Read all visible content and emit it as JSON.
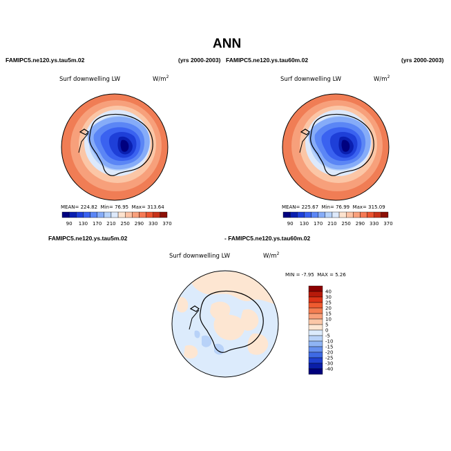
{
  "title": "ANN",
  "top_left": {
    "case_name": "FAMIPC5.ne120.ys.tau5m.02",
    "years": "(yrs 2000-2003)",
    "variable": "Surf downwelling LW",
    "units_base": "W/m",
    "units_exp": "2",
    "stats": {
      "mean_label": "MEAN=",
      "mean": "224.82",
      "min_label": "Min=",
      "min": "76.95",
      "max_label": "Max=",
      "max": "313.64"
    }
  },
  "top_right": {
    "case_name": "FAMIPC5.ne120.ys.tau60m.02",
    "years": "(yrs 2000-2003)",
    "variable": "Surf downwelling LW",
    "units_base": "W/m",
    "units_exp": "2",
    "stats": {
      "mean_label": "MEAN=",
      "mean": "225.67",
      "min_label": "Min=",
      "min": "76.99",
      "max_label": "Max=",
      "max": "315.09"
    }
  },
  "bottom": {
    "case_a": "FAMIPC5.ne120.ys.tau5m.02",
    "case_b": "- FAMIPC5.ne120.ys.tau60m.02",
    "variable": "Surf downwelling LW",
    "units_base": "W/m",
    "units_exp": "2",
    "stats": {
      "min_label": "MIN =",
      "min": "-7.95",
      "max_label": "MAX =",
      "max": "5.26"
    }
  },
  "abs_colorbar": {
    "labels": [
      "90",
      "130",
      "170",
      "210",
      "250",
      "290",
      "330",
      "370"
    ],
    "colors": [
      "#00007f",
      "#0a1fb0",
      "#1e3fd8",
      "#3a62f0",
      "#5b86f5",
      "#86acf8",
      "#b6d2fa",
      "#dde9fb",
      "#fde3cf",
      "#fcc3a5",
      "#f9a07c",
      "#f57a55",
      "#ea5430",
      "#c8331a",
      "#8c1006"
    ]
  },
  "diff_colorbar": {
    "labels": [
      "40",
      "30",
      "25",
      "20",
      "15",
      "10",
      "5",
      "0",
      "-5",
      "-10",
      "-15",
      "-20",
      "-25",
      "-30",
      "-40"
    ],
    "colors": [
      "#8c0000",
      "#b71a0a",
      "#dd3418",
      "#ef5b30",
      "#f47e52",
      "#f8a07a",
      "#fbc7a7",
      "#fde6d2",
      "#dcebfc",
      "#b8d2f8",
      "#8fb4f4",
      "#6690ee",
      "#3e6ae4",
      "#1f40cf",
      "#0a1ea8",
      "#00007c"
    ]
  }
}
